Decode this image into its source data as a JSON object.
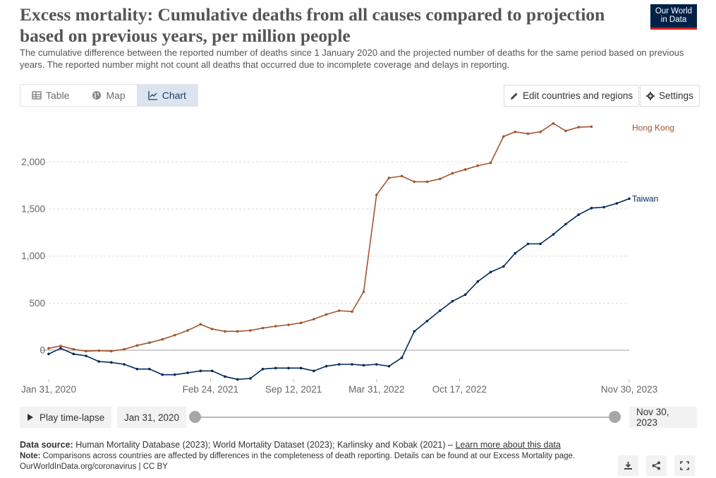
{
  "header": {
    "title": "Excess mortality: Cumulative deaths from all causes compared to projection based on previous years, per million people",
    "subtitle": "The cumulative difference between the reported number of deaths since 1 January 2020 and the projected number of deaths for the same period based on previous years. The reported number might not count all deaths that occurred due to incomplete coverage and delays in reporting.",
    "logo_line1": "Our World",
    "logo_line2": "in Data"
  },
  "tabs": [
    {
      "label": "Table",
      "icon": "table-icon",
      "active": false
    },
    {
      "label": "Map",
      "icon": "globe-icon",
      "active": false
    },
    {
      "label": "Chart",
      "icon": "line-chart-icon",
      "active": true
    }
  ],
  "toolbar": {
    "edit_label": "Edit countries and regions",
    "settings_label": "Settings"
  },
  "controls": {
    "play_label": "Play time-lapse",
    "start_date": "Jan 31, 2020",
    "end_date": "Nov 30, 2023"
  },
  "footer": {
    "source_label": "Data source:",
    "source_text": "Human Mortality Database (2023); World Mortality Dataset (2023); Karlinsky and Kobak (2021) –",
    "learn_more": "Learn more about this data",
    "note_label": "Note:",
    "note_text": "Comparisons across countries are affected by differences in the completeness of death reporting. Details can be found at our Excess Mortality page.",
    "url": "OurWorldInData.org/coronavirus | CC BY"
  },
  "colors": {
    "hong_kong": "#a2552c",
    "taiwan": "#00295b",
    "grid": "#dddddd",
    "zero_line": "#a0a0a0",
    "active_tab": "#dbe5f0"
  },
  "chart_data": {
    "type": "line",
    "title": "",
    "xlabel": "",
    "ylabel": "",
    "x_ticks": [
      "Jan 31, 2020",
      "Feb 24, 2021",
      "Sep 12, 2021",
      "Mar 31, 2022",
      "Oct 17, 2022",
      "Nov 30, 2023"
    ],
    "y_ticks": [
      "0",
      "500",
      "1,000",
      "1,500",
      "2,000"
    ],
    "ylim": [
      -300,
      2450
    ],
    "grid": true,
    "legend": "right-inline",
    "series": [
      {
        "name": "Hong Kong",
        "color": "#a2552c",
        "values": [
          [
            "2020-01-31",
            20
          ],
          [
            "2020-02-29",
            45
          ],
          [
            "2020-03-31",
            10
          ],
          [
            "2020-04-30",
            -10
          ],
          [
            "2020-05-31",
            -5
          ],
          [
            "2020-06-30",
            -10
          ],
          [
            "2020-07-31",
            10
          ],
          [
            "2020-08-31",
            50
          ],
          [
            "2020-09-30",
            80
          ],
          [
            "2020-10-31",
            115
          ],
          [
            "2020-11-30",
            160
          ],
          [
            "2020-12-31",
            210
          ],
          [
            "2021-01-31",
            275
          ],
          [
            "2021-02-28",
            225
          ],
          [
            "2021-03-31",
            200
          ],
          [
            "2021-04-30",
            200
          ],
          [
            "2021-05-31",
            210
          ],
          [
            "2021-06-30",
            235
          ],
          [
            "2021-07-31",
            255
          ],
          [
            "2021-08-31",
            270
          ],
          [
            "2021-09-30",
            290
          ],
          [
            "2021-10-31",
            330
          ],
          [
            "2021-11-30",
            380
          ],
          [
            "2021-12-31",
            420
          ],
          [
            "2022-01-31",
            410
          ],
          [
            "2022-02-28",
            620
          ],
          [
            "2022-03-31",
            1650
          ],
          [
            "2022-04-30",
            1830
          ],
          [
            "2022-05-31",
            1850
          ],
          [
            "2022-06-30",
            1790
          ],
          [
            "2022-07-31",
            1790
          ],
          [
            "2022-08-31",
            1820
          ],
          [
            "2022-09-30",
            1880
          ],
          [
            "2022-10-31",
            1920
          ],
          [
            "2022-11-30",
            1960
          ],
          [
            "2022-12-31",
            1990
          ],
          [
            "2023-01-31",
            2270
          ],
          [
            "2023-02-28",
            2320
          ],
          [
            "2023-03-31",
            2300
          ],
          [
            "2023-04-30",
            2320
          ],
          [
            "2023-05-31",
            2410
          ],
          [
            "2023-06-30",
            2330
          ],
          [
            "2023-07-31",
            2370
          ],
          [
            "2023-08-31",
            2375
          ]
        ]
      },
      {
        "name": "Taiwan",
        "color": "#00295b",
        "values": [
          [
            "2020-01-31",
            -40
          ],
          [
            "2020-02-29",
            20
          ],
          [
            "2020-03-31",
            -40
          ],
          [
            "2020-04-30",
            -60
          ],
          [
            "2020-05-31",
            -120
          ],
          [
            "2020-06-30",
            -130
          ],
          [
            "2020-07-31",
            -150
          ],
          [
            "2020-08-31",
            -200
          ],
          [
            "2020-09-30",
            -200
          ],
          [
            "2020-10-31",
            -260
          ],
          [
            "2020-11-30",
            -260
          ],
          [
            "2020-12-31",
            -240
          ],
          [
            "2021-01-31",
            -220
          ],
          [
            "2021-02-28",
            -220
          ],
          [
            "2021-03-31",
            -280
          ],
          [
            "2021-04-30",
            -310
          ],
          [
            "2021-05-31",
            -300
          ],
          [
            "2021-06-30",
            -200
          ],
          [
            "2021-07-31",
            -190
          ],
          [
            "2021-08-31",
            -190
          ],
          [
            "2021-09-30",
            -190
          ],
          [
            "2021-10-31",
            -220
          ],
          [
            "2021-11-30",
            -170
          ],
          [
            "2021-12-31",
            -150
          ],
          [
            "2022-01-31",
            -150
          ],
          [
            "2022-02-28",
            -160
          ],
          [
            "2022-03-31",
            -150
          ],
          [
            "2022-04-30",
            -170
          ],
          [
            "2022-05-31",
            -80
          ],
          [
            "2022-06-30",
            200
          ],
          [
            "2022-07-31",
            310
          ],
          [
            "2022-08-31",
            420
          ],
          [
            "2022-09-30",
            520
          ],
          [
            "2022-10-31",
            590
          ],
          [
            "2022-11-30",
            730
          ],
          [
            "2022-12-31",
            830
          ],
          [
            "2023-01-31",
            890
          ],
          [
            "2023-02-28",
            1030
          ],
          [
            "2023-03-31",
            1130
          ],
          [
            "2023-04-30",
            1130
          ],
          [
            "2023-05-31",
            1230
          ],
          [
            "2023-06-30",
            1340
          ],
          [
            "2023-07-31",
            1440
          ],
          [
            "2023-08-31",
            1510
          ],
          [
            "2023-09-30",
            1520
          ],
          [
            "2023-10-31",
            1560
          ],
          [
            "2023-11-30",
            1610
          ]
        ]
      }
    ]
  }
}
